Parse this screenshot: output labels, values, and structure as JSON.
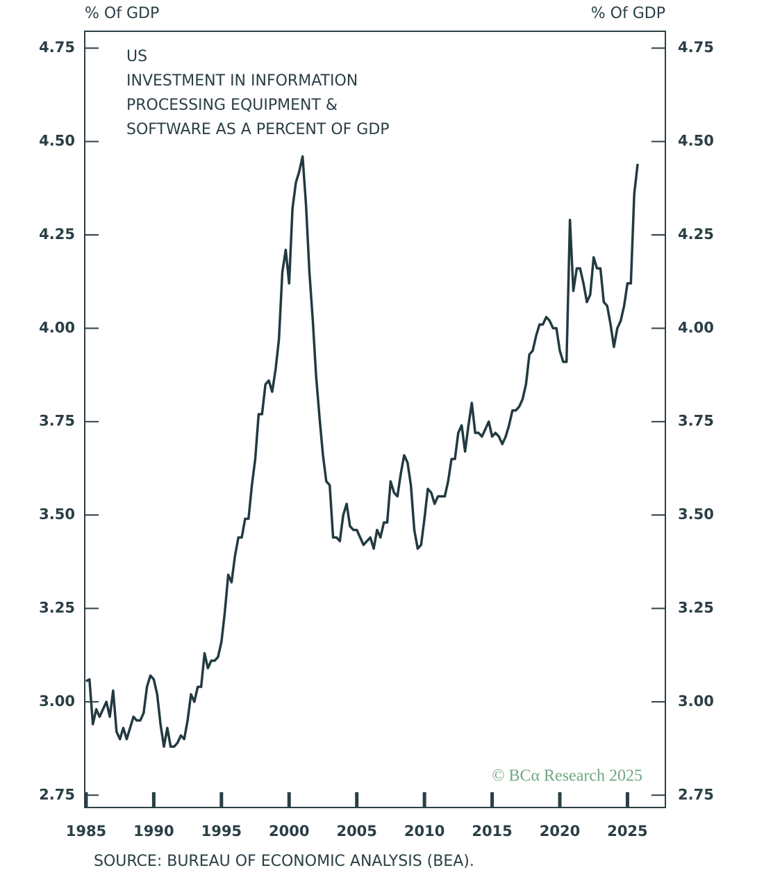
{
  "chart_data": {
    "type": "line",
    "title": [
      "US",
      "INVESTMENT IN INFORMATION",
      "PROCESSING EQUIPMENT &",
      "SOFTWARE AS A PERCENT OF GDP"
    ],
    "ylabel": "% Of GDP",
    "y2label": "% Of GDP",
    "source": "SOURCE: BUREAU OF ECONOMIC ANALYSIS (BEA).",
    "watermark": "© BCα Research 2025",
    "color": "#223a40",
    "xlim": [
      1984.9,
      2027.8
    ],
    "xticks": [
      1985,
      1990,
      1995,
      2000,
      2005,
      2010,
      2015,
      2020,
      2025
    ],
    "ylim": [
      2.717,
      4.795
    ],
    "yticks": [
      {
        "value": 4.75,
        "label": "4.75"
      },
      {
        "value": 4.5,
        "label": "4.50"
      },
      {
        "value": 4.25,
        "label": "4.25"
      },
      {
        "value": 4,
        "label": "4.00"
      },
      {
        "value": 3.75,
        "label": "3.75"
      },
      {
        "value": 3.5,
        "label": "3.50"
      },
      {
        "value": 3.25,
        "label": "3.25"
      },
      {
        "value": 3,
        "label": "3.00"
      },
      {
        "value": 2.75,
        "label": "2.75"
      }
    ],
    "x": [
      1985,
      1985.25,
      1985.5,
      1985.75,
      1986,
      1986.25,
      1986.5,
      1986.75,
      1987,
      1987.25,
      1987.5,
      1987.75,
      1988,
      1988.25,
      1988.5,
      1988.75,
      1989,
      1989.25,
      1989.5,
      1989.75,
      1990,
      1990.25,
      1990.5,
      1990.75,
      1991,
      1991.25,
      1991.5,
      1991.75,
      1992,
      1992.25,
      1992.5,
      1992.75,
      1993,
      1993.25,
      1993.5,
      1993.75,
      1994,
      1994.25,
      1994.5,
      1994.75,
      1995,
      1995.25,
      1995.5,
      1995.75,
      1996,
      1996.25,
      1996.5,
      1996.75,
      1997,
      1997.25,
      1997.5,
      1997.75,
      1998,
      1998.25,
      1998.5,
      1998.75,
      1999,
      1999.25,
      1999.5,
      1999.75,
      2000,
      2000.25,
      2000.5,
      2000.75,
      2001,
      2001.25,
      2001.5,
      2001.75,
      2002,
      2002.25,
      2002.5,
      2002.75,
      2003,
      2003.25,
      2003.5,
      2003.75,
      2004,
      2004.25,
      2004.5,
      2004.75,
      2005,
      2005.25,
      2005.5,
      2005.75,
      2006,
      2006.25,
      2006.5,
      2006.75,
      2007,
      2007.25,
      2007.5,
      2007.75,
      2008,
      2008.25,
      2008.5,
      2008.75,
      2009,
      2009.25,
      2009.5,
      2009.75,
      2010,
      2010.25,
      2010.5,
      2010.75,
      2011,
      2011.25,
      2011.5,
      2011.75,
      2012,
      2012.25,
      2012.5,
      2012.75,
      2013,
      2013.25,
      2013.5,
      2013.75,
      2014,
      2014.25,
      2014.5,
      2014.75,
      2015,
      2015.25,
      2015.5,
      2015.75,
      2016,
      2016.25,
      2016.5,
      2016.75,
      2017,
      2017.25,
      2017.5,
      2017.75,
      2018,
      2018.25,
      2018.5,
      2018.75,
      2019,
      2019.25,
      2019.5,
      2019.75,
      2020,
      2020.25,
      2020.5,
      2020.75,
      2021,
      2021.25,
      2021.5,
      2021.75,
      2022,
      2022.25,
      2022.5,
      2022.75,
      2023,
      2023.25,
      2023.5,
      2023.75,
      2024,
      2024.25,
      2024.5,
      2024.75,
      2025,
      2025.25,
      2025.5,
      2025.75
    ],
    "values": [
      3.055,
      3.06,
      2.94,
      2.98,
      2.96,
      2.98,
      3.0,
      2.96,
      3.03,
      2.92,
      2.9,
      2.93,
      2.9,
      2.93,
      2.96,
      2.95,
      2.95,
      2.97,
      3.04,
      3.07,
      3.06,
      3.02,
      2.94,
      2.88,
      2.93,
      2.88,
      2.88,
      2.89,
      2.91,
      2.9,
      2.95,
      3.02,
      3.0,
      3.04,
      3.04,
      3.13,
      3.09,
      3.11,
      3.11,
      3.12,
      3.16,
      3.24,
      3.34,
      3.32,
      3.39,
      3.44,
      3.44,
      3.49,
      3.49,
      3.58,
      3.65,
      3.77,
      3.77,
      3.85,
      3.86,
      3.83,
      3.89,
      3.97,
      4.15,
      4.21,
      4.12,
      4.32,
      4.39,
      4.42,
      4.46,
      4.33,
      4.15,
      4.02,
      3.87,
      3.76,
      3.66,
      3.59,
      3.58,
      3.44,
      3.44,
      3.43,
      3.5,
      3.53,
      3.47,
      3.46,
      3.46,
      3.44,
      3.42,
      3.43,
      3.44,
      3.41,
      3.46,
      3.44,
      3.48,
      3.48,
      3.59,
      3.56,
      3.55,
      3.61,
      3.66,
      3.64,
      3.58,
      3.46,
      3.41,
      3.42,
      3.49,
      3.57,
      3.56,
      3.53,
      3.55,
      3.55,
      3.55,
      3.59,
      3.65,
      3.65,
      3.72,
      3.74,
      3.67,
      3.74,
      3.8,
      3.72,
      3.72,
      3.71,
      3.73,
      3.75,
      3.71,
      3.72,
      3.71,
      3.69,
      3.71,
      3.74,
      3.78,
      3.78,
      3.79,
      3.81,
      3.85,
      3.93,
      3.94,
      3.98,
      4.01,
      4.01,
      4.03,
      4.02,
      4.0,
      4.0,
      3.94,
      3.91,
      3.91,
      4.29,
      4.1,
      4.16,
      4.16,
      4.12,
      4.07,
      4.09,
      4.19,
      4.16,
      4.16,
      4.07,
      4.06,
      4.01,
      3.95,
      4.0,
      4.02,
      4.06,
      4.12,
      4.12,
      4.36,
      4.44
    ]
  }
}
